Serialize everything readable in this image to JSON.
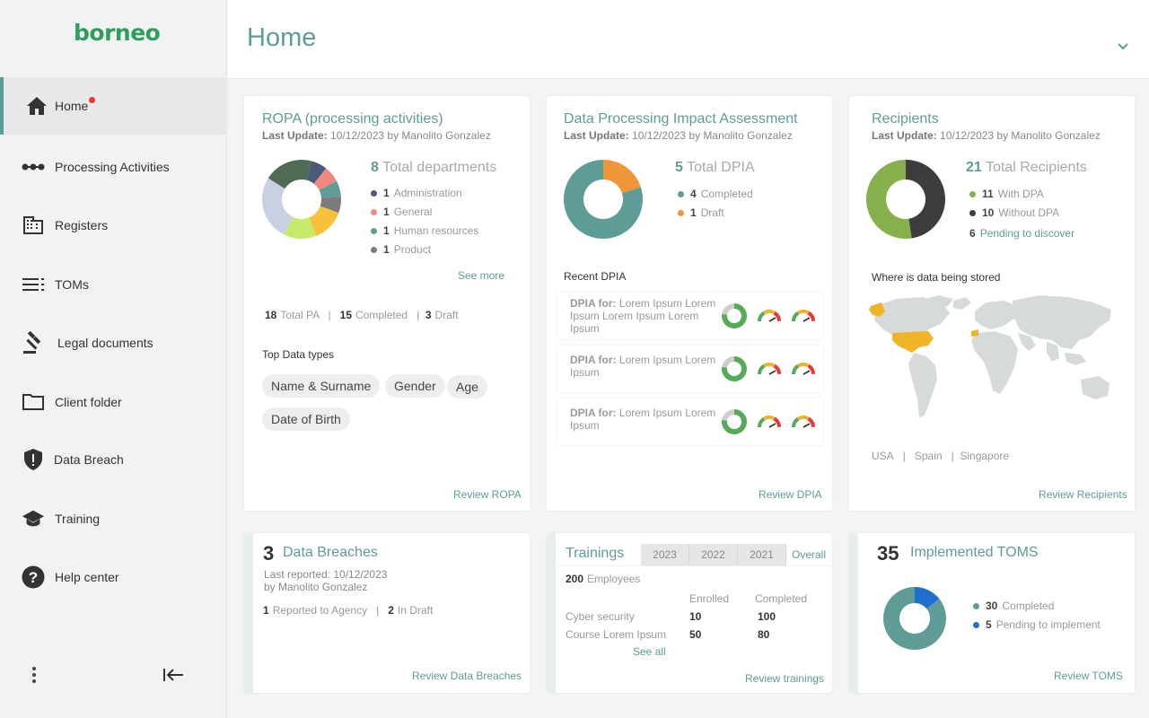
{
  "app": {
    "logo": "borneo"
  },
  "sidebar": {
    "items": [
      {
        "label": "Home",
        "icon": "home-icon",
        "active": true,
        "notification": true
      },
      {
        "label": "Processing Activities",
        "icon": "processing-icon"
      },
      {
        "label": "Registers",
        "icon": "building-icon"
      },
      {
        "label": "TOMs",
        "icon": "list-icon"
      },
      {
        "label": "Legal documents",
        "icon": "gavel-icon"
      },
      {
        "label": "Client folder",
        "icon": "folder-icon"
      },
      {
        "label": "Data Breach",
        "icon": "shield-alert-icon"
      },
      {
        "label": "Training",
        "icon": "graduation-cap-icon"
      },
      {
        "label": "Help center",
        "icon": "help-icon"
      }
    ]
  },
  "header": {
    "title": "Home"
  },
  "colors": {
    "accent": "#5f9c97",
    "brand": "#2e9e5a",
    "orange": "#f0953a",
    "green": "#86b04b",
    "dark": "#3d3d3d",
    "blue": "#1e6fd0",
    "notification": "#e53935"
  },
  "ropa": {
    "title": "ROPA (processing activities)",
    "last_update_label": "Last Update:",
    "last_update": "10/12/2023 by Manolito Gonzalez",
    "total_count": "8",
    "total_label": "Total departments",
    "legend": [
      {
        "count": "1",
        "label": "Administration",
        "color": "#4b5a78"
      },
      {
        "count": "1",
        "label": "General",
        "color": "#f08a80"
      },
      {
        "count": "1",
        "label": "Human resources",
        "color": "#5f9c97"
      },
      {
        "count": "1",
        "label": "Product",
        "color": "#7b7b7b"
      }
    ],
    "see_more": "See more",
    "stats": {
      "total_pa": "18",
      "total_pa_label": "Total PA",
      "completed": "15",
      "completed_label": "Completed",
      "draft": "3",
      "draft_label": "Draft",
      "sep": "|"
    },
    "top_data_types_label": "Top Data types",
    "chips": [
      "Name & Surname",
      "Gender",
      "Age",
      "Date of Birth"
    ],
    "review": "Review ROPA"
  },
  "dpia": {
    "title": "Data Processing Impact Assessment",
    "last_update_label": "Last Update:",
    "last_update": "10/12/2023 by Manolito Gonzalez",
    "total_count": "5",
    "total_label": "Total DPIA",
    "legend": [
      {
        "count": "4",
        "label": "Completed",
        "color": "#5f9c97"
      },
      {
        "count": "1",
        "label": "Draft",
        "color": "#f0953a"
      }
    ],
    "recent_label": "Recent DPIA",
    "rows": [
      {
        "prefix": "DPIA for:",
        "text": "Lorem Ipsum Lorem Ipsum Lorem Ipsum Lorem Ipsum"
      },
      {
        "prefix": "DPIA for:",
        "text": "Lorem Ipsum Lorem Ipsum"
      },
      {
        "prefix": "DPIA for:",
        "text": "Lorem Ipsum Lorem Ipsum"
      }
    ],
    "review": "Review DPIA"
  },
  "recipients": {
    "title": "Recipients",
    "last_update_label": "Last Update:",
    "last_update": "10/12/2023 by Manolito Gonzalez",
    "total_count": "21",
    "total_label": "Total Recipients",
    "legend": [
      {
        "count": "11",
        "label": "With DPA",
        "color": "#86b04b"
      },
      {
        "count": "10",
        "label": "Without DPA",
        "color": "#3d3d3d"
      }
    ],
    "pending_count": "6",
    "pending_label": "Pending to discover",
    "map_label": "Where is data being stored",
    "countries": [
      "USA",
      "Spain",
      "Singapore"
    ],
    "sep": "|",
    "review": "Review Recipients"
  },
  "breaches": {
    "count": "3",
    "title": "Data Breaches",
    "last_reported": "Last reported: 10/12/2023",
    "by": "by Manolito Gonzalez",
    "reported_count": "1",
    "reported_label": "Reported to Agency",
    "draft_count": "2",
    "draft_label": "In Draft",
    "sep": "|",
    "review": "Review Data Breaches"
  },
  "trainings": {
    "title": "Trainings",
    "tabs": [
      "2023",
      "2022",
      "2021",
      "Overall"
    ],
    "active_tab": "Overall",
    "employees_count": "200",
    "employees_label": "Employees",
    "col_enrolled": "Enrolled",
    "col_completed": "Completed",
    "rows": [
      {
        "name": "Cyber security",
        "enrolled": "10",
        "completed": "100"
      },
      {
        "name": "Course Lorem Ipsum",
        "enrolled": "50",
        "completed": "80"
      }
    ],
    "see_all": "See all",
    "review": "Review trainings"
  },
  "toms": {
    "count": "35",
    "title": "Implemented TOMS",
    "legend": [
      {
        "count": "30",
        "label": "Completed",
        "color": "#5f9c97"
      },
      {
        "count": "5",
        "label": "Pending to implement",
        "color": "#1e6fd0"
      }
    ],
    "review": "Review TOMS"
  }
}
